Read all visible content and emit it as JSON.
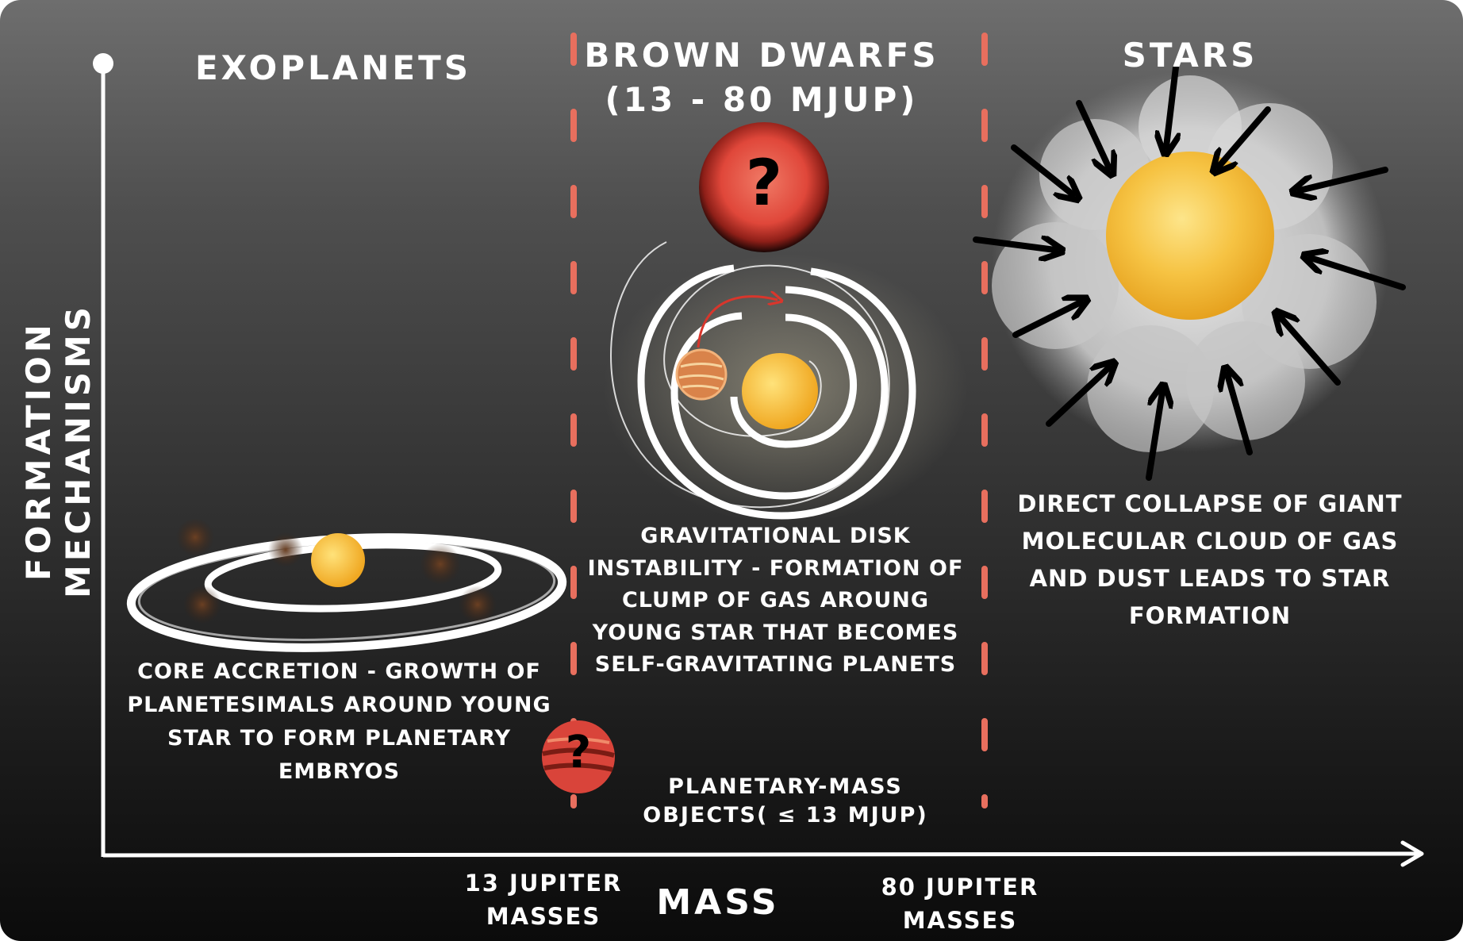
{
  "headings": {
    "exoplanets": "EXOPLANETS",
    "brown_dwarfs_line1": "BROWN DWARFS",
    "brown_dwarfs_line2": "(13 - 80 MJUP)",
    "stars": "STARS"
  },
  "axes": {
    "y_label": "FORMATION MECHANISMS",
    "x_label": "MASS",
    "tick_13_line1": "13 JUPITER",
    "tick_13_line2": "MASSES",
    "tick_80_line1": "80 JUPITER",
    "tick_80_line2": "MASSES"
  },
  "descriptions": {
    "core_accretion": [
      "CORE ACCRETION - GROWTH OF",
      "PLANETESIMALS AROUND YOUNG",
      "STAR TO FORM PLANETARY",
      "EMBRYOS"
    ],
    "disk_instability": [
      "GRAVITATIONAL DISK",
      "INSTABILITY - FORMATION OF",
      "CLUMP OF GAS AROUNG",
      "YOUNG STAR THAT BECOMES",
      "SELF-GRAVITATING PLANETS"
    ],
    "direct_collapse": [
      "DIRECT COLLAPSE OF GIANT",
      "MOLECULAR CLOUD OF GAS",
      "AND DUST LEADS TO  STAR",
      "FORMATION"
    ]
  },
  "planetary_mass": {
    "line1": "PLANETARY-MASS",
    "line2": "OBJECTS( ≤ 13 MJUP)"
  },
  "question_mark": "?",
  "colors": {
    "divider": "#e86f5e",
    "axis": "#ffffff",
    "star_yellow": "#f6c343",
    "brown_dwarf_red": "#d9443a",
    "background_top": "#6e6e6e",
    "background_bottom": "#0b0b0b"
  }
}
